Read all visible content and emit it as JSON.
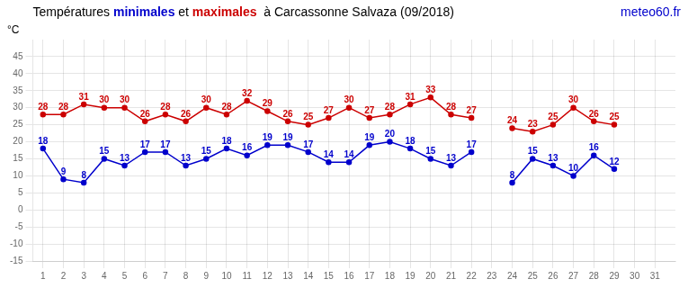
{
  "chart_data": {
    "type": "line",
    "title": "Températures minimales et maximales  à Carcassonne Salvaza (09/2018)",
    "ylabel": "°C",
    "annotations": [
      {
        "text": "meteo60.fr",
        "color": "#0000cc"
      }
    ],
    "x": [
      1,
      2,
      3,
      4,
      5,
      6,
      7,
      8,
      9,
      10,
      11,
      12,
      13,
      14,
      15,
      16,
      17,
      18,
      19,
      20,
      21,
      22,
      23,
      24,
      25,
      26,
      27,
      28,
      29,
      30,
      31
    ],
    "series": [
      {
        "name": "minimales",
        "color": "#0000cc",
        "values": [
          18,
          9,
          8,
          15,
          13,
          17,
          17,
          13,
          15,
          18,
          16,
          19,
          19,
          17,
          14,
          14,
          19,
          20,
          18,
          15,
          13,
          17,
          null,
          8,
          15,
          13,
          10,
          16,
          12,
          null,
          null
        ]
      },
      {
        "name": "maximales",
        "color": "#cc0000",
        "values": [
          28,
          28,
          31,
          30,
          30,
          26,
          28,
          26,
          30,
          28,
          32,
          29,
          26,
          25,
          27,
          30,
          27,
          28,
          31,
          33,
          28,
          27,
          null,
          24,
          23,
          25,
          30,
          26,
          25,
          null,
          null
        ]
      }
    ],
    "xlim": [
      0.5,
      32
    ],
    "xticks": [
      1,
      2,
      3,
      4,
      5,
      6,
      7,
      8,
      9,
      10,
      11,
      12,
      13,
      14,
      15,
      16,
      17,
      18,
      19,
      20,
      21,
      22,
      23,
      24,
      25,
      26,
      27,
      28,
      29,
      30,
      31
    ],
    "ylim": [
      -15,
      50
    ],
    "yticks": [
      -15,
      -10,
      -5,
      0,
      5,
      10,
      15,
      20,
      25,
      30,
      35,
      40,
      45
    ],
    "grid": true,
    "data_labels": true,
    "marker": "circle",
    "line_style": "solid"
  }
}
